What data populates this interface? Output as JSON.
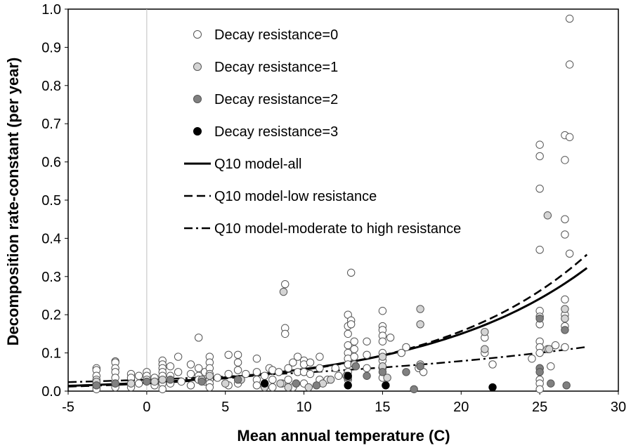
{
  "chart_data": {
    "type": "scatter",
    "title": "",
    "xlabel": "Mean annual temperature (C)",
    "ylabel": "Decomposition rate-constant (per year)",
    "xlim": [
      -5,
      30
    ],
    "ylim": [
      0,
      1.0
    ],
    "xticks": [
      "-5",
      "0",
      "5",
      "10",
      "15",
      "20",
      "25",
      "30"
    ],
    "yticks": [
      "0.0",
      "0.1",
      "0.2",
      "0.3",
      "0.4",
      "0.5",
      "0.6",
      "0.7",
      "0.8",
      "0.9",
      "1.0"
    ],
    "grid": false,
    "reference_line_x": 0,
    "legend_position": "top-left",
    "series": [
      {
        "name": "Decay resistance=0",
        "kind": "points",
        "color": "#ffffff",
        "points": [
          [
            -3.2,
            0.06
          ],
          [
            -3.2,
            0.055
          ],
          [
            -3.2,
            0.04
          ],
          [
            -3.2,
            0.03
          ],
          [
            -3.2,
            0.02
          ],
          [
            -3.2,
            0.01
          ],
          [
            -3.2,
            0.005
          ],
          [
            -2,
            0.078
          ],
          [
            -2,
            0.075
          ],
          [
            -2,
            0.06
          ],
          [
            -2,
            0.05
          ],
          [
            -2,
            0.035
          ],
          [
            -2,
            0.02
          ],
          [
            -2,
            0.01
          ],
          [
            -1,
            0.045
          ],
          [
            -1,
            0.035
          ],
          [
            -1,
            0.02
          ],
          [
            -1,
            0.01
          ],
          [
            -0.5,
            0.04
          ],
          [
            -0.5,
            0.02
          ],
          [
            0,
            0.05
          ],
          [
            0,
            0.04
          ],
          [
            0,
            0.03
          ],
          [
            0.5,
            0.035
          ],
          [
            0.5,
            0.015
          ],
          [
            1,
            0.08
          ],
          [
            1,
            0.07
          ],
          [
            1,
            0.06
          ],
          [
            1,
            0.05
          ],
          [
            1,
            0.04
          ],
          [
            1,
            0.02
          ],
          [
            1,
            0.005
          ],
          [
            1.5,
            0.065
          ],
          [
            1.5,
            0.04
          ],
          [
            1.5,
            0.02
          ],
          [
            2,
            0.09
          ],
          [
            2,
            0.05
          ],
          [
            2.2,
            0.025
          ],
          [
            2.8,
            0.07
          ],
          [
            2.8,
            0.045
          ],
          [
            2.8,
            0.015
          ],
          [
            3.3,
            0.14
          ],
          [
            3.3,
            0.06
          ],
          [
            3.3,
            0.04
          ],
          [
            3.3,
            0.03
          ],
          [
            3.7,
            0.05
          ],
          [
            3.7,
            0.025
          ],
          [
            4,
            0.09
          ],
          [
            4,
            0.075
          ],
          [
            4,
            0.06
          ],
          [
            4,
            0.045
          ],
          [
            4,
            0.03
          ],
          [
            4,
            0.02
          ],
          [
            4,
            0.01
          ],
          [
            4.5,
            0.035
          ],
          [
            5.2,
            0.095
          ],
          [
            5.2,
            0.045
          ],
          [
            5.2,
            0.015
          ],
          [
            5.8,
            0.095
          ],
          [
            5.8,
            0.075
          ],
          [
            5.8,
            0.055
          ],
          [
            5.8,
            0.02
          ],
          [
            6.3,
            0.045
          ],
          [
            7,
            0.085
          ],
          [
            7,
            0.05
          ],
          [
            7,
            0.03
          ],
          [
            7,
            0.015
          ],
          [
            7.5,
            0.04
          ],
          [
            7.8,
            0.06
          ],
          [
            8,
            0.055
          ],
          [
            8,
            0.03
          ],
          [
            8,
            0.01
          ],
          [
            8.4,
            0.05
          ],
          [
            8.6,
            0.02
          ],
          [
            8.8,
            0.28
          ],
          [
            8.8,
            0.165
          ],
          [
            8.8,
            0.15
          ],
          [
            9,
            0.06
          ],
          [
            9,
            0.03
          ],
          [
            9.3,
            0.075
          ],
          [
            9.3,
            0.01
          ],
          [
            9.6,
            0.09
          ],
          [
            9.6,
            0.05
          ],
          [
            10,
            0.08
          ],
          [
            10,
            0.07
          ],
          [
            10,
            0.05
          ],
          [
            10,
            0.02
          ],
          [
            10.4,
            0.075
          ],
          [
            10.4,
            0.045
          ],
          [
            11,
            0.09
          ],
          [
            11,
            0.06
          ],
          [
            11,
            0.03
          ],
          [
            11.5,
            0.03
          ],
          [
            12,
            0.06
          ],
          [
            12.2,
            0.04
          ],
          [
            12.8,
            0.2
          ],
          [
            12.8,
            0.17
          ],
          [
            12.8,
            0.15
          ],
          [
            12.8,
            0.12
          ],
          [
            12.8,
            0.1
          ],
          [
            12.8,
            0.085
          ],
          [
            12.8,
            0.07
          ],
          [
            12.8,
            0.05
          ],
          [
            12.8,
            0.03
          ],
          [
            13,
            0.31
          ],
          [
            13,
            0.185
          ],
          [
            13,
            0.175
          ],
          [
            13.2,
            0.13
          ],
          [
            13.2,
            0.11
          ],
          [
            13.2,
            0.09
          ],
          [
            14,
            0.13
          ],
          [
            14,
            0.095
          ],
          [
            14,
            0.06
          ],
          [
            15,
            0.21
          ],
          [
            15,
            0.17
          ],
          [
            15,
            0.16
          ],
          [
            15,
            0.145
          ],
          [
            15,
            0.13
          ],
          [
            15,
            0.1
          ],
          [
            15,
            0.08
          ],
          [
            15,
            0.06
          ],
          [
            15,
            0.035
          ],
          [
            15.5,
            0.14
          ],
          [
            16.2,
            0.1
          ],
          [
            16.5,
            0.115
          ],
          [
            17.3,
            0.06
          ],
          [
            17.6,
            0.05
          ],
          [
            21.5,
            0.14
          ],
          [
            21.5,
            0.1
          ],
          [
            22,
            0.07
          ],
          [
            24.5,
            0.085
          ],
          [
            25,
            0.645
          ],
          [
            25,
            0.615
          ],
          [
            25,
            0.53
          ],
          [
            25,
            0.37
          ],
          [
            25,
            0.21
          ],
          [
            25,
            0.195
          ],
          [
            25,
            0.175
          ],
          [
            25,
            0.13
          ],
          [
            25,
            0.115
          ],
          [
            25,
            0.1
          ],
          [
            25,
            0.06
          ],
          [
            25,
            0.03
          ],
          [
            25,
            0.02
          ],
          [
            25,
            0.005
          ],
          [
            25.5,
            0.11
          ],
          [
            25.7,
            0.065
          ],
          [
            26,
            0.12
          ],
          [
            26.6,
            0.67
          ],
          [
            26.6,
            0.605
          ],
          [
            26.6,
            0.45
          ],
          [
            26.6,
            0.41
          ],
          [
            26.6,
            0.24
          ],
          [
            26.6,
            0.2
          ],
          [
            26.6,
            0.17
          ],
          [
            26.6,
            0.115
          ],
          [
            26.9,
            0.975
          ],
          [
            26.9,
            0.855
          ],
          [
            26.9,
            0.665
          ],
          [
            26.9,
            0.36
          ]
        ]
      },
      {
        "name": "Decay resistance=1",
        "kind": "points",
        "color": "#d4d4d4",
        "points": [
          [
            -3.2,
            0.025
          ],
          [
            -2,
            0.02
          ],
          [
            -1,
            0.02
          ],
          [
            0.5,
            0.025
          ],
          [
            1,
            0.03
          ],
          [
            3.5,
            0.03
          ],
          [
            4,
            0.04
          ],
          [
            5,
            0.02
          ],
          [
            6,
            0.03
          ],
          [
            7.5,
            0.01
          ],
          [
            8.5,
            0.02
          ],
          [
            8.7,
            0.26
          ],
          [
            9,
            0.01
          ],
          [
            9.5,
            0.02
          ],
          [
            10.3,
            0.01
          ],
          [
            11.2,
            0.02
          ],
          [
            11.7,
            0.03
          ],
          [
            12.7,
            0.04
          ],
          [
            13.2,
            0.07
          ],
          [
            15,
            0.09
          ],
          [
            15,
            0.065
          ],
          [
            15.3,
            0.035
          ],
          [
            17.4,
            0.175
          ],
          [
            17.4,
            0.215
          ],
          [
            17.4,
            0.07
          ],
          [
            21.5,
            0.155
          ],
          [
            21.5,
            0.11
          ],
          [
            25.5,
            0.46
          ],
          [
            25.6,
            0.11
          ],
          [
            26.6,
            0.215
          ],
          [
            26.6,
            0.19
          ]
        ]
      },
      {
        "name": "Decay resistance=2",
        "kind": "points",
        "color": "#808080",
        "points": [
          [
            -3.2,
            0.015
          ],
          [
            -2,
            0.02
          ],
          [
            0,
            0.025
          ],
          [
            1.5,
            0.03
          ],
          [
            3.5,
            0.025
          ],
          [
            5.8,
            0.03
          ],
          [
            7.5,
            0.02
          ],
          [
            9.5,
            0.02
          ],
          [
            10.8,
            0.015
          ],
          [
            12.8,
            0.035
          ],
          [
            13.3,
            0.065
          ],
          [
            14,
            0.04
          ],
          [
            15,
            0.05
          ],
          [
            16.5,
            0.05
          ],
          [
            17,
            0.005
          ],
          [
            17.4,
            0.065
          ],
          [
            25,
            0.19
          ],
          [
            25,
            0.06
          ],
          [
            25,
            0.05
          ],
          [
            25.7,
            0.02
          ],
          [
            26.6,
            0.16
          ],
          [
            26.7,
            0.015
          ]
        ]
      },
      {
        "name": "Decay resistance=3",
        "kind": "points",
        "color": "#000000",
        "points": [
          [
            7.5,
            0.02
          ],
          [
            12.8,
            0.04
          ],
          [
            12.8,
            0.015
          ],
          [
            15.2,
            0.015
          ],
          [
            22,
            0.01
          ]
        ]
      },
      {
        "name": "Q10 model-all",
        "kind": "curve",
        "color": "#000000",
        "dash": "solid",
        "curve": {
          "k0": 0.0222,
          "q10": 2.6,
          "x_from": -5,
          "x_to": 28
        }
      },
      {
        "name": "Q10 model-low resistance",
        "kind": "curve",
        "color": "#000000",
        "dash": "dashed",
        "curve": {
          "k0": 0.02,
          "q10": 2.8,
          "x_from": -5,
          "x_to": 28
        }
      },
      {
        "name": "Q10 model-moderate to high resistance",
        "kind": "curve",
        "color": "#000000",
        "dash": "dash-dot",
        "curve": {
          "k0": 0.03,
          "q10": 1.62,
          "x_from": -5,
          "x_to": 28
        }
      }
    ]
  }
}
